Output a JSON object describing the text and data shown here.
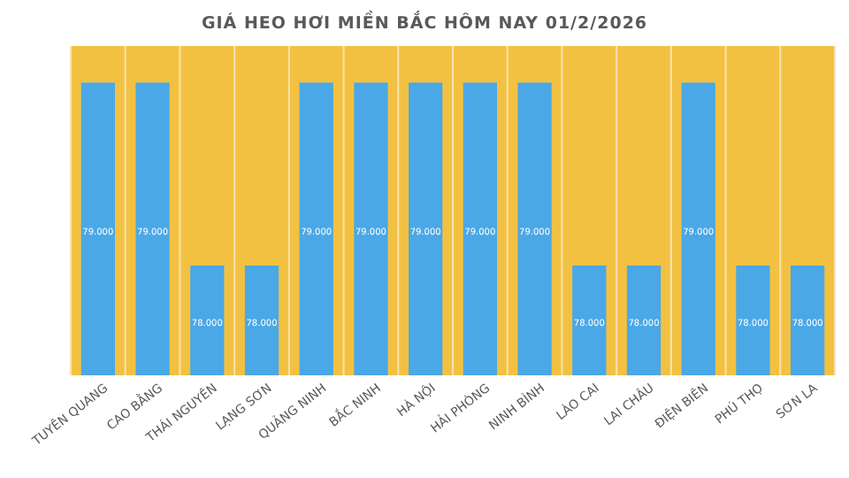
{
  "chart_data": {
    "type": "bar",
    "title": "GIÁ HEO HƠI MIỀN BẮC HÔM NAY 01/2/2026",
    "categories": [
      "TUYÊN QUANG",
      "CAO BẰNG",
      "THÁI NGUYÊN",
      "LẠNG SƠN",
      "QUẢNG NINH",
      "BẮC NINH",
      "HÀ NỘI",
      "HẢI PHÒNG",
      "NINH BÌNH",
      "LÀO CAI",
      "LAI CHÂU",
      "ĐIỆN BIÊN",
      "PHÚ THỌ",
      "SƠN LA"
    ],
    "values": [
      79000,
      79000,
      78000,
      78000,
      79000,
      79000,
      79000,
      79000,
      79000,
      78000,
      78000,
      79000,
      78000,
      78000
    ],
    "value_labels": [
      "79.000",
      "79.000",
      "78.000",
      "78.000",
      "79.000",
      "79.000",
      "79.000",
      "79.000",
      "79.000",
      "78.000",
      "78.000",
      "79.000",
      "78.000",
      "78.000"
    ],
    "color": "#4aa8e6",
    "ylim": [
      77400,
      79200
    ],
    "grid": "x",
    "tick_labels": "x"
  }
}
